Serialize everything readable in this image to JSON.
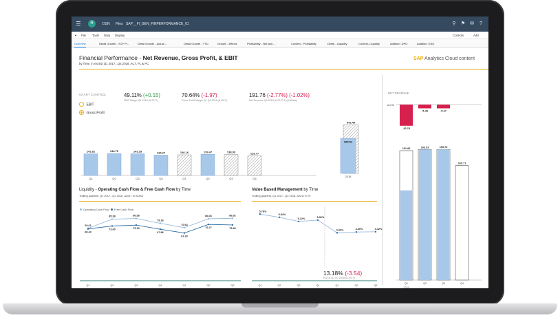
{
  "shell": {
    "crumbs": [
      "DSN",
      "Files",
      "SAP__FI_GEN_FINPERFORMANCE_01"
    ],
    "avatar_text": "R",
    "icons": [
      "menu-icon",
      "search-icon",
      "flag-icon",
      "chat-icon",
      "help-icon"
    ]
  },
  "menubar": {
    "left": [
      "File",
      "Tools",
      "Data",
      "Display"
    ],
    "right": [
      "Controls",
      "Add"
    ]
  },
  "tabs": [
    "Overview",
    "Detail Growth - YOY Pr...",
    "Detail Growth - Actual ...",
    "Detail Growth - YTD",
    "Growth - Effects",
    "Profitability - Net and ...",
    "Context - Profitability",
    "Detail - Liquidity",
    "Context- Liquidity",
    "Addition: DPO",
    "Addition: DSO"
  ],
  "header": {
    "title_prefix": "Financial Performance - ",
    "title_bold": "Net Revenue, Gross Profit, & EBIT",
    "subtitle": "by Time, in mUSD Q1 2017...Q4 2018, ACT, PL & PC",
    "brand_sap": "SAP",
    "brand_rest": " Analytics Cloud content"
  },
  "chart_control": {
    "label": "CHART CONTROL",
    "options": [
      {
        "label": "EBIT",
        "selected": false
      },
      {
        "label": "Gross Profit",
        "selected": true
      }
    ]
  },
  "kpis": [
    {
      "value": "49.11%",
      "delta": "(+0.15)",
      "sign": "pos",
      "caption": "EBIT Margin Q1 2018 (Δ 2017)"
    },
    {
      "value": "70.64%",
      "delta": "(-1.97)",
      "sign": "neg",
      "caption": "Gross Profit Margin Q1 Q3 2018 (Δ 2017)"
    },
    {
      "value": "191.76",
      "delta": "(-2.77%) (-1.02%)",
      "sign": "neg",
      "caption": "Net Revenue Q3 2018 (Δ 2017%) (Δ%Rate)"
    }
  ],
  "gross_profit_chart": {
    "type": "bar",
    "categories": [
      "Q1",
      "Q2",
      "Q3",
      "Q4",
      "Q1",
      "Q2",
      "Q3",
      "Q4"
    ],
    "actual": [
      142.81,
      144.75,
      143.18,
      134.27,
      null,
      139.47,
      null,
      null
    ],
    "plan": [
      null,
      null,
      null,
      null,
      136.16,
      null,
      138.09,
      128.77
    ],
    "labels": [
      "142.81",
      "144.75",
      "143.18",
      "134.27",
      "136.16",
      "139.47",
      "138.09",
      "128.77"
    ]
  },
  "year_total_chart": {
    "type": "bar",
    "categories": [
      "2018"
    ],
    "plan_label": "542.49",
    "actual_label": "389.51",
    "plan": 542.49,
    "actual": 389.51
  },
  "liquidity": {
    "title_prefix": "Liquidity - ",
    "title_bold": "Operating Cash Flow & Free Cash Flow",
    "title_suffix": " by Time",
    "subtitle": "Trailing quarters, Q1 2017...Q2 2018, Δ2017 in mUSD",
    "legend": [
      "Operating Cash Flow",
      "Free Cash Flow"
    ],
    "x_labels": [
      "Q1",
      "Q2",
      "Q3",
      "Q4",
      "Q1",
      "Q2",
      "Q3"
    ],
    "year_labels": [
      "2017",
      "2018"
    ],
    "chart_data": {
      "type": "line",
      "series": [
        {
          "name": "Operating Cash Flow",
          "values": [
            69.61,
            85.38,
            86.58,
            78.16,
            70.64,
            86.03,
            86.92
          ]
        },
        {
          "name": "Free Cash Flow",
          "values": [
            68.43,
            73.6,
            75.1,
            67.86,
            61.33,
            76.27,
            75.4
          ]
        }
      ],
      "labels_ocf": [
        "69.61",
        "85.38",
        "86.58",
        "78.16",
        "70.64",
        "86.03",
        "86.92"
      ],
      "labels_fcf": [
        "68.43",
        "73.60",
        "75.10",
        "67.86",
        "61.33",
        "76.27",
        "75.40"
      ]
    }
  },
  "vbm": {
    "title_bold": "Value Based Management",
    "title_suffix": " by Time",
    "subtitle": "Trailing quarters, Q1 2017...Q2 2018, Δ2017 in %",
    "x_labels": [
      "Q1",
      "Q2",
      "Q3",
      "Q4",
      "Q1",
      "Q2",
      "Q3"
    ],
    "chart_data": {
      "type": "line",
      "series": [
        {
          "values": [
            5.78,
            5.54,
            5.22,
            5.32,
            4.34,
            4.4,
            4.42
          ]
        }
      ],
      "labels": [
        "5.78%",
        "5.54%",
        "5.22%",
        "5.32%",
        "4.34%",
        "4.40%",
        "4.42%"
      ]
    },
    "kpi_value": "13.18%",
    "kpi_delta": "(-3.54)",
    "kpi_caption": "ROCE Q3 Q2 2018 (Δ 2017)"
  },
  "net_revenue": {
    "label": "NET REVENUE",
    "variance_axis_label": "Δ 0.00",
    "variance": [
      -30.78,
      -5.48,
      -5.47
    ],
    "variance_labels": [
      "-30.78",
      "-5.48",
      "-5.47"
    ],
    "categories": [
      "Q1",
      "Q2",
      "Q3",
      "Q4"
    ],
    "year_label": "2018",
    "actual": [
      133.0,
      193.53,
      193.73,
      null
    ],
    "plan": [
      191.83,
      193.53,
      193.73,
      169.71
    ],
    "labels": [
      "191.83",
      "193.53",
      "193.73",
      "169.71"
    ]
  },
  "colors": {
    "shell": "#354a5f",
    "accent": "#e9b01c",
    "bar_actual": "#a8c8ea",
    "bar_edge": "#7fa9d8",
    "line_ocf": "#9bb9d8",
    "line_fcf": "#2f6c9f",
    "positive": "#2b9e3e",
    "negative": "#d6204e"
  }
}
